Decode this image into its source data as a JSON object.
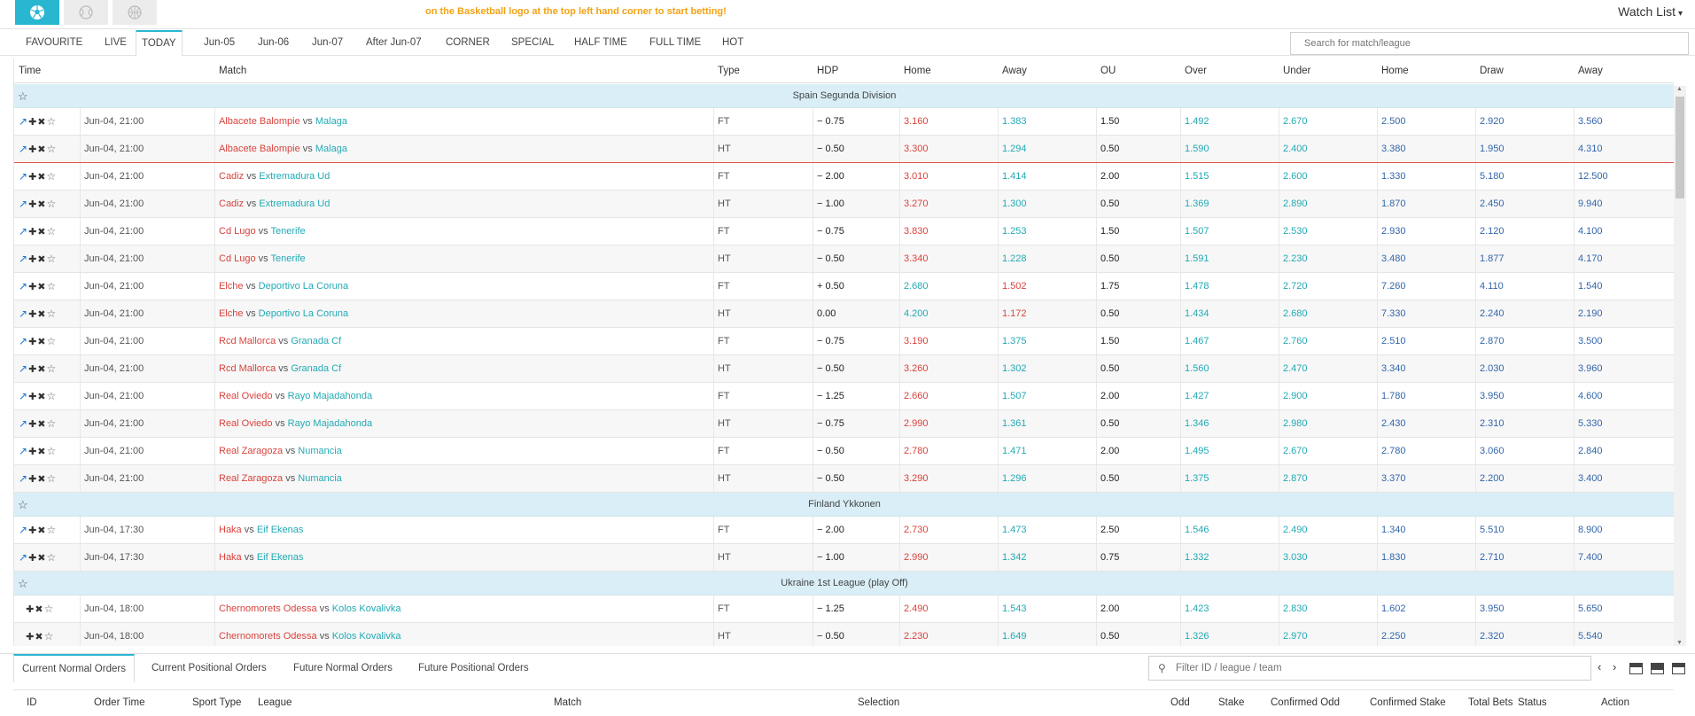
{
  "topbar": {
    "marquee": "on the Basketball logo at the top left hand corner to start betting!",
    "watchlist": "Watch List",
    "watchlist_caret": "▾",
    "sports": [
      {
        "icon": "soccer-ball-icon",
        "active": true
      },
      {
        "icon": "tennis-ball-icon",
        "active": false
      },
      {
        "icon": "basketball-icon",
        "active": false
      }
    ]
  },
  "tabs": [
    "FAVOURITE",
    "LIVE",
    "TODAY",
    "Jun-05",
    "Jun-06",
    "Jun-07",
    "After Jun-07",
    "CORNER",
    "SPECIAL",
    "HALF TIME",
    "FULL TIME",
    "HOT"
  ],
  "active_tab": "TODAY",
  "search": {
    "placeholder": "Search for match/league"
  },
  "grid_header": [
    "Time",
    "Match",
    "Type",
    "HDP",
    "Home",
    "Away",
    "OU",
    "Over",
    "Under",
    "Home",
    "Draw",
    "Away"
  ],
  "leagues": [
    {
      "name": "Spain Segunda Division",
      "matches": [
        {
          "time": "Jun-04, 21:00",
          "home": "Albacete Balompie",
          "away": "Malaga",
          "type": "FT",
          "hdp": "− 0.75",
          "hdp_home": "3.160",
          "hdp_away": "1.383",
          "ou": "1.50",
          "over": "1.492",
          "under": "2.670",
          "x_home": "2.500",
          "x_draw": "2.920",
          "x_away": "3.560",
          "fav": "away",
          "chart": true
        },
        {
          "time": "Jun-04, 21:00",
          "home": "Albacete Balompie",
          "away": "Malaga",
          "type": "HT",
          "hdp": "− 0.50",
          "hdp_home": "3.300",
          "hdp_away": "1.294",
          "ou": "0.50",
          "over": "1.590",
          "under": "2.400",
          "x_home": "3.380",
          "x_draw": "1.950",
          "x_away": "4.310",
          "fav": "away",
          "chart": true
        },
        {
          "time": "Jun-04, 21:00",
          "home": "Cadiz",
          "away": "Extremadura Ud",
          "type": "FT",
          "hdp": "− 2.00",
          "hdp_home": "3.010",
          "hdp_away": "1.414",
          "ou": "2.00",
          "over": "1.515",
          "under": "2.600",
          "x_home": "1.330",
          "x_draw": "5.180",
          "x_away": "12.500",
          "fav": "away",
          "chart": true
        },
        {
          "time": "Jun-04, 21:00",
          "home": "Cadiz",
          "away": "Extremadura Ud",
          "type": "HT",
          "hdp": "− 1.00",
          "hdp_home": "3.270",
          "hdp_away": "1.300",
          "ou": "0.50",
          "over": "1.369",
          "under": "2.890",
          "x_home": "1.870",
          "x_draw": "2.450",
          "x_away": "9.940",
          "fav": "away",
          "chart": true
        },
        {
          "time": "Jun-04, 21:00",
          "home": "Cd Lugo",
          "away": "Tenerife",
          "type": "FT",
          "hdp": "− 0.75",
          "hdp_home": "3.830",
          "hdp_away": "1.253",
          "ou": "1.50",
          "over": "1.507",
          "under": "2.530",
          "x_home": "2.930",
          "x_draw": "2.120",
          "x_away": "4.100",
          "fav": "away",
          "chart": true
        },
        {
          "time": "Jun-04, 21:00",
          "home": "Cd Lugo",
          "away": "Tenerife",
          "type": "HT",
          "hdp": "− 0.50",
          "hdp_home": "3.340",
          "hdp_away": "1.228",
          "ou": "0.50",
          "over": "1.591",
          "under": "2.230",
          "x_home": "3.480",
          "x_draw": "1.877",
          "x_away": "4.170",
          "fav": "away",
          "chart": true
        },
        {
          "time": "Jun-04, 21:00",
          "home": "Elche",
          "away": "Deportivo La Coruna",
          "type": "FT",
          "hdp": "+ 0.50",
          "hdp_home": "2.680",
          "hdp_away": "1.502",
          "ou": "1.75",
          "over": "1.478",
          "under": "2.720",
          "x_home": "7.260",
          "x_draw": "4.110",
          "x_away": "1.540",
          "fav": "home",
          "chart": true
        },
        {
          "time": "Jun-04, 21:00",
          "home": "Elche",
          "away": "Deportivo La Coruna",
          "type": "HT",
          "hdp": "0.00",
          "hdp_home": "4.200",
          "hdp_away": "1.172",
          "ou": "0.50",
          "over": "1.434",
          "under": "2.680",
          "x_home": "7.330",
          "x_draw": "2.240",
          "x_away": "2.190",
          "fav": "home",
          "chart": true
        },
        {
          "time": "Jun-04, 21:00",
          "home": "Rcd Mallorca",
          "away": "Granada Cf",
          "type": "FT",
          "hdp": "− 0.75",
          "hdp_home": "3.190",
          "hdp_away": "1.375",
          "ou": "1.50",
          "over": "1.467",
          "under": "2.760",
          "x_home": "2.510",
          "x_draw": "2.870",
          "x_away": "3.500",
          "fav": "away",
          "chart": true
        },
        {
          "time": "Jun-04, 21:00",
          "home": "Rcd Mallorca",
          "away": "Granada Cf",
          "type": "HT",
          "hdp": "− 0.50",
          "hdp_home": "3.260",
          "hdp_away": "1.302",
          "ou": "0.50",
          "over": "1.560",
          "under": "2.470",
          "x_home": "3.340",
          "x_draw": "2.030",
          "x_away": "3.960",
          "fav": "away",
          "chart": true
        },
        {
          "time": "Jun-04, 21:00",
          "home": "Real Oviedo",
          "away": "Rayo Majadahonda",
          "type": "FT",
          "hdp": "− 1.25",
          "hdp_home": "2.660",
          "hdp_away": "1.507",
          "ou": "2.00",
          "over": "1.427",
          "under": "2.900",
          "x_home": "1.780",
          "x_draw": "3.950",
          "x_away": "4.600",
          "fav": "away",
          "chart": true
        },
        {
          "time": "Jun-04, 21:00",
          "home": "Real Oviedo",
          "away": "Rayo Majadahonda",
          "type": "HT",
          "hdp": "− 0.75",
          "hdp_home": "2.990",
          "hdp_away": "1.361",
          "ou": "0.50",
          "over": "1.346",
          "under": "2.980",
          "x_home": "2.430",
          "x_draw": "2.310",
          "x_away": "5.330",
          "fav": "away",
          "chart": true
        },
        {
          "time": "Jun-04, 21:00",
          "home": "Real Zaragoza",
          "away": "Numancia",
          "type": "FT",
          "hdp": "− 0.50",
          "hdp_home": "2.780",
          "hdp_away": "1.471",
          "ou": "2.00",
          "over": "1.495",
          "under": "2.670",
          "x_home": "2.780",
          "x_draw": "3.060",
          "x_away": "2.840",
          "fav": "away",
          "chart": true
        },
        {
          "time": "Jun-04, 21:00",
          "home": "Real Zaragoza",
          "away": "Numancia",
          "type": "HT",
          "hdp": "− 0.50",
          "hdp_home": "3.290",
          "hdp_away": "1.296",
          "ou": "0.50",
          "over": "1.375",
          "under": "2.870",
          "x_home": "3.370",
          "x_draw": "2.200",
          "x_away": "3.400",
          "fav": "away",
          "chart": true
        }
      ]
    },
    {
      "name": "Finland Ykkonen",
      "matches": [
        {
          "time": "Jun-04, 17:30",
          "home": "Haka",
          "away": "Eif Ekenas",
          "type": "FT",
          "hdp": "− 2.00",
          "hdp_home": "2.730",
          "hdp_away": "1.473",
          "ou": "2.50",
          "over": "1.546",
          "under": "2.490",
          "x_home": "1.340",
          "x_draw": "5.510",
          "x_away": "8.900",
          "fav": "away",
          "chart": true
        },
        {
          "time": "Jun-04, 17:30",
          "home": "Haka",
          "away": "Eif Ekenas",
          "type": "HT",
          "hdp": "− 1.00",
          "hdp_home": "2.990",
          "hdp_away": "1.342",
          "ou": "0.75",
          "over": "1.332",
          "under": "3.030",
          "x_home": "1.830",
          "x_draw": "2.710",
          "x_away": "7.400",
          "fav": "away",
          "chart": true
        }
      ]
    },
    {
      "name": "Ukraine 1st League (play Off)",
      "matches": [
        {
          "time": "Jun-04, 18:00",
          "home": "Chernomorets Odessa",
          "away": "Kolos Kovalivka",
          "type": "FT",
          "hdp": "− 1.25",
          "hdp_home": "2.490",
          "hdp_away": "1.543",
          "ou": "2.00",
          "over": "1.423",
          "under": "2.830",
          "x_home": "1.602",
          "x_draw": "3.950",
          "x_away": "5.650",
          "fav": "away",
          "chart": false
        },
        {
          "time": "Jun-04, 18:00",
          "home": "Chernomorets Odessa",
          "away": "Kolos Kovalivka",
          "type": "HT",
          "hdp": "− 0.50",
          "hdp_home": "2.230",
          "hdp_away": "1.649",
          "ou": "0.50",
          "over": "1.326",
          "under": "2.970",
          "x_home": "2.250",
          "x_draw": "2.320",
          "x_away": "5.540",
          "fav": "away",
          "chart": false
        }
      ]
    }
  ],
  "vs_label": "vs",
  "bottom": {
    "tabs": [
      "Current Normal Orders",
      "Current Positional Orders",
      "Future Normal Orders",
      "Future Positional Orders"
    ],
    "active_tab": "Current Normal Orders",
    "filter_placeholder": "Filter ID / league / team",
    "pager_prev": "‹",
    "pager_next": "›",
    "columns": [
      "ID",
      "Order Time",
      "Sport Type",
      "League",
      "Match",
      "Selection",
      "Odd",
      "Stake",
      "Confirmed Odd",
      "Confirmed Stake",
      "Total Bets",
      "Status",
      "Action"
    ]
  },
  "colors": {
    "accent": "#29b6d1",
    "home": "#d9433d",
    "away": "#22aab5",
    "league_bg": "#d9eef6",
    "marquee": "#f2a316",
    "odds_blue": "#3366aa"
  }
}
